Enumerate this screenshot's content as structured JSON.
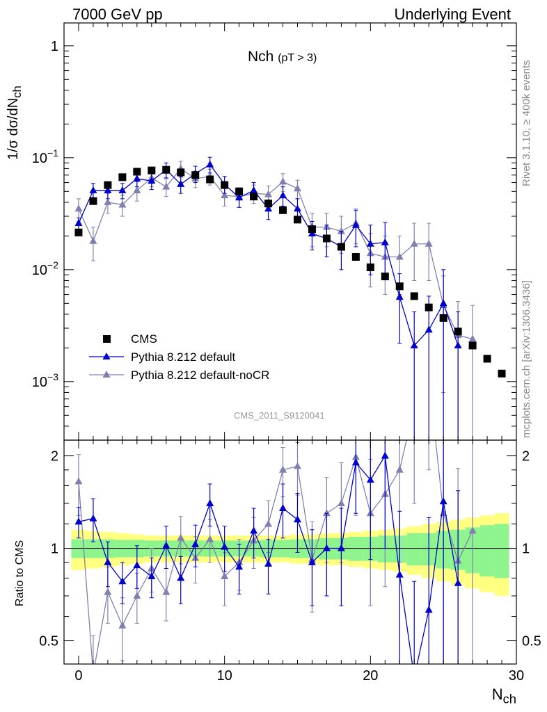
{
  "header": {
    "left": "7000 GeV pp",
    "right": "Underlying Event"
  },
  "side_labels": {
    "rivet": "Rivet 3.1.10, ≥ 400k events",
    "mcplots": "mcplots.cern.ch [arXiv:1306.3436]"
  },
  "watermark": "CMS_2011_S9120041",
  "plot_title": {
    "main": "Nch",
    "sub": "(pT >  3)"
  },
  "axis_labels": {
    "y_top": "1/σ dσ/dN",
    "y_top_sub": "ch",
    "y_bottom": "Ratio to CMS",
    "x": "N",
    "x_sub": "ch"
  },
  "legend": [
    {
      "label": "CMS",
      "color": "#000000",
      "marker": "square"
    },
    {
      "label": "Pythia 8.212 default",
      "color": "#0000cc",
      "marker": "triangle"
    },
    {
      "label": "Pythia 8.212 default-noCR",
      "color": "#8080b0",
      "marker": "triangle"
    }
  ],
  "chart_data": [
    {
      "type": "scatter",
      "panel": "main",
      "yscale": "log",
      "xlim": [
        -1,
        30
      ],
      "ylim": [
        0.0003,
        1.6
      ],
      "yticks": [
        {
          "v": 1,
          "label": "1"
        },
        {
          "v": 0.1,
          "label": "10−1"
        },
        {
          "v": 0.01,
          "label": "10−2"
        },
        {
          "v": 0.001,
          "label": "10−3"
        }
      ],
      "xticks": [
        0,
        10,
        20,
        30
      ],
      "series": [
        {
          "name": "CMS",
          "color": "#000000",
          "x": [
            0,
            1,
            2,
            3,
            4,
            5,
            6,
            7,
            8,
            9,
            10,
            11,
            12,
            13,
            14,
            15,
            16,
            17,
            18,
            19,
            20,
            21,
            22,
            23,
            24,
            25,
            26,
            27,
            28,
            29
          ],
          "y": [
            0.0215,
            0.041,
            0.057,
            0.067,
            0.075,
            0.077,
            0.078,
            0.074,
            0.07,
            0.064,
            0.057,
            0.05,
            0.045,
            0.039,
            0.034,
            0.028,
            0.023,
            0.019,
            0.016,
            0.013,
            0.0105,
            0.0087,
            0.0071,
            0.0058,
            0.0046,
            0.0037,
            0.0028,
            0.0021,
            0.0016,
            0.00118
          ]
        },
        {
          "name": "Pythia 8.212 default",
          "color": "#0000cc",
          "x": [
            0,
            1,
            2,
            3,
            4,
            5,
            6,
            7,
            8,
            9,
            10,
            11,
            12,
            13,
            14,
            15,
            16,
            17,
            18,
            19,
            20,
            21,
            22,
            23,
            24,
            25,
            26
          ],
          "y": [
            0.026,
            0.051,
            0.051,
            0.051,
            0.065,
            0.062,
            0.078,
            0.058,
            0.072,
            0.087,
            0.058,
            0.044,
            0.051,
            0.035,
            0.046,
            0.035,
            0.021,
            0.019,
            0.016,
            0.025,
            0.017,
            0.0175,
            0.0057,
            0.0021,
            0.0029,
            0.005,
            0.0021
          ],
          "err_lo": [
            0.003,
            0.008,
            0.008,
            0.008,
            0.01,
            0.01,
            0.012,
            0.01,
            0.012,
            0.014,
            0.01,
            0.008,
            0.009,
            0.007,
            0.009,
            0.008,
            0.006,
            0.006,
            0.006,
            0.009,
            0.008,
            0.009,
            0.0035,
            0.0021,
            0.0029,
            0.005,
            0.0021
          ],
          "err_hi": [
            0.003,
            0.008,
            0.008,
            0.008,
            0.01,
            0.01,
            0.012,
            0.01,
            0.012,
            0.014,
            0.01,
            0.008,
            0.009,
            0.007,
            0.009,
            0.008,
            0.006,
            0.006,
            0.006,
            0.009,
            0.008,
            0.009,
            0.0035,
            0.0021,
            0.0029,
            0.005,
            0.0021
          ]
        },
        {
          "name": "Pythia 8.212 default-noCR",
          "color": "#8080b0",
          "x": [
            0,
            1,
            2,
            3,
            4,
            5,
            6,
            7,
            8,
            9,
            10,
            11,
            12,
            13,
            14,
            15,
            16,
            17,
            18,
            19,
            20,
            21,
            22,
            23,
            24,
            25,
            26,
            27
          ],
          "y": [
            0.035,
            0.018,
            0.04,
            0.038,
            0.051,
            0.066,
            0.055,
            0.08,
            0.065,
            0.068,
            0.046,
            0.045,
            0.048,
            0.047,
            0.061,
            0.053,
            0.024,
            0.024,
            0.022,
            0.026,
            0.014,
            0.013,
            0.013,
            0.017,
            0.017,
            0.0048,
            0.0026,
            0.0024
          ],
          "err_lo": [
            0.008,
            0.006,
            0.008,
            0.008,
            0.01,
            0.011,
            0.01,
            0.013,
            0.011,
            0.011,
            0.009,
            0.009,
            0.009,
            0.009,
            0.011,
            0.01,
            0.008,
            0.008,
            0.008,
            0.009,
            0.007,
            0.007,
            0.007,
            0.009,
            0.009,
            0.004,
            0.0026,
            0.0024
          ],
          "err_hi": [
            0.008,
            0.006,
            0.008,
            0.008,
            0.01,
            0.011,
            0.01,
            0.013,
            0.011,
            0.011,
            0.009,
            0.009,
            0.009,
            0.009,
            0.011,
            0.01,
            0.008,
            0.008,
            0.008,
            0.009,
            0.007,
            0.007,
            0.007,
            0.009,
            0.009,
            0.004,
            0.0026,
            0.0024
          ]
        }
      ]
    },
    {
      "type": "line",
      "panel": "ratio",
      "yscale": "log",
      "xlim": [
        -1,
        30
      ],
      "ylim": [
        0.42,
        2.25
      ],
      "yticks": [
        {
          "v": 2,
          "label": "2"
        },
        {
          "v": 1,
          "label": "1"
        },
        {
          "v": 0.5,
          "label": "0.5"
        }
      ],
      "band_inner": {
        "x": [
          0,
          1,
          2,
          3,
          4,
          5,
          6,
          7,
          8,
          9,
          10,
          11,
          12,
          13,
          14,
          15,
          16,
          17,
          18,
          19,
          20,
          21,
          22,
          23,
          24,
          25,
          26,
          27,
          28,
          29
        ],
        "halfwidth": [
          0.07,
          0.07,
          0.07,
          0.065,
          0.065,
          0.06,
          0.06,
          0.06,
          0.06,
          0.06,
          0.06,
          0.06,
          0.06,
          0.065,
          0.065,
          0.07,
          0.07,
          0.08,
          0.08,
          0.09,
          0.09,
          0.1,
          0.1,
          0.12,
          0.12,
          0.14,
          0.15,
          0.17,
          0.19,
          0.2
        ]
      },
      "band_outer": {
        "x": [
          0,
          1,
          2,
          3,
          4,
          5,
          6,
          7,
          8,
          9,
          10,
          11,
          12,
          13,
          14,
          15,
          16,
          17,
          18,
          19,
          20,
          21,
          22,
          23,
          24,
          25,
          26,
          27,
          28,
          29
        ],
        "halfwidth": [
          0.15,
          0.14,
          0.13,
          0.12,
          0.11,
          0.1,
          0.1,
          0.1,
          0.1,
          0.1,
          0.1,
          0.1,
          0.1,
          0.1,
          0.1,
          0.11,
          0.11,
          0.12,
          0.12,
          0.13,
          0.14,
          0.15,
          0.16,
          0.18,
          0.2,
          0.22,
          0.24,
          0.26,
          0.28,
          0.3
        ]
      },
      "series": [
        {
          "name": "Pythia 8.212 default",
          "color": "#0000cc",
          "x": [
            0,
            1,
            2,
            3,
            4,
            5,
            6,
            7,
            8,
            9,
            10,
            11,
            12,
            13,
            14,
            15,
            16,
            17,
            18,
            19,
            20,
            21,
            22,
            23,
            24,
            25,
            26
          ],
          "y": [
            1.22,
            1.25,
            0.9,
            0.78,
            0.88,
            0.81,
            1.02,
            0.8,
            1.03,
            1.4,
            1.01,
            0.87,
            1.14,
            0.89,
            1.35,
            1.24,
            0.9,
            1.0,
            1.0,
            1.9,
            1.67,
            2.0,
            0.82,
            0.38,
            0.63,
            1.42,
            0.77
          ],
          "err_lo": [
            0.14,
            0.2,
            0.15,
            0.12,
            0.14,
            0.12,
            0.16,
            0.14,
            0.16,
            0.22,
            0.17,
            0.16,
            0.21,
            0.18,
            0.27,
            0.27,
            0.25,
            0.3,
            0.35,
            0.6,
            0.75,
            1.0,
            0.5,
            0.38,
            0.63,
            1.42,
            0.77
          ],
          "err_hi": [
            0.14,
            0.2,
            0.15,
            0.12,
            0.14,
            0.12,
            0.16,
            0.14,
            0.16,
            0.22,
            0.17,
            0.16,
            0.21,
            0.18,
            0.27,
            0.27,
            0.25,
            0.3,
            0.35,
            0.6,
            0.75,
            1.0,
            0.5,
            0.4,
            0.63,
            1.42,
            0.77
          ]
        },
        {
          "name": "Pythia 8.212 default-noCR",
          "color": "#8080b0",
          "x": [
            0,
            1,
            2,
            3,
            4,
            5,
            6,
            7,
            8,
            9,
            10,
            11,
            12,
            13,
            14,
            15,
            16,
            17,
            18,
            19,
            20,
            21,
            22,
            23,
            24,
            25,
            26,
            27
          ],
          "y": [
            1.65,
            0.39,
            0.72,
            0.56,
            0.7,
            0.86,
            0.72,
            1.08,
            0.93,
            1.07,
            0.81,
            0.9,
            1.06,
            1.2,
            1.8,
            1.85,
            0.92,
            1.3,
            1.4,
            1.98,
            1.3,
            1.5,
            1.8,
            2.9,
            3.6,
            1.3,
            0.91,
            1.14
          ],
          "err_lo": [
            0.37,
            0.13,
            0.15,
            0.13,
            0.13,
            0.14,
            0.14,
            0.19,
            0.16,
            0.17,
            0.16,
            0.17,
            0.2,
            0.23,
            0.33,
            0.36,
            0.3,
            0.4,
            0.5,
            0.7,
            0.65,
            0.75,
            0.9,
            1.5,
            1.8,
            1.1,
            0.91,
            1.14
          ],
          "err_hi": [
            0.37,
            0.13,
            0.15,
            0.13,
            0.13,
            0.14,
            0.14,
            0.19,
            0.16,
            0.17,
            0.16,
            0.17,
            0.2,
            0.23,
            0.33,
            0.36,
            0.3,
            0.4,
            0.5,
            0.7,
            0.65,
            0.75,
            0.9,
            1.5,
            1.8,
            1.1,
            0.91,
            1.14
          ]
        }
      ]
    }
  ]
}
